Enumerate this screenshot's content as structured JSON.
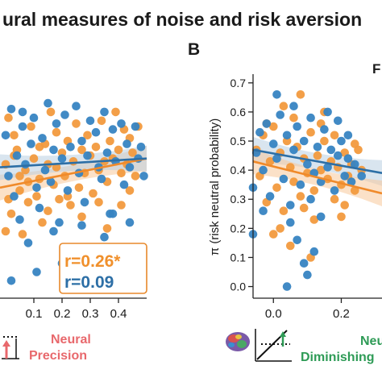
{
  "figure": {
    "title": "ural measures of noise and risk aversion",
    "panel_b_letter": "B",
    "panel_b_legend_fragment": "F",
    "panel_a_annotation": {
      "line1": "r=0.26*",
      "line2": "r=0.09",
      "line1_color": "#f0902c",
      "line2_color": "#2d6fa6"
    },
    "bottom_left_label": {
      "line1": "Neural",
      "line2": "Precision",
      "color": "#e8686c"
    },
    "bottom_right_label": {
      "line1": "Neu",
      "line2": "Diminishing",
      "color": "#2e9b56"
    }
  },
  "colors": {
    "orange": "#f29a3e",
    "blue": "#3784c2",
    "orange_line": "#f08a2a",
    "blue_line": "#2d6fa6",
    "orange_band": "#f7c99a",
    "blue_band": "#b9cfe2"
  },
  "icons": [
    "neural-precision-diagram-icon",
    "brain-icon",
    "diminishing-diagram-icon"
  ],
  "chart_data": [
    {
      "type": "scatter",
      "panel": "A",
      "xlabel": "",
      "ylabel": "",
      "xlim": [
        -0.02,
        0.5
      ],
      "ylim": [
        -0.04,
        0.73
      ],
      "xticks": [
        0.1,
        0.2,
        0.3,
        0.4
      ],
      "xtick_labels": [
        "0.1",
        "0.2",
        "0.3",
        "0.4"
      ],
      "series": [
        {
          "color": "orange",
          "points": [
            [
              0.0,
              0.42
            ],
            [
              0.01,
              0.58
            ],
            [
              0.02,
              0.25
            ],
            [
              0.03,
              0.52
            ],
            [
              0.04,
              0.47
            ],
            [
              0.05,
              0.33
            ],
            [
              0.06,
              0.18
            ],
            [
              0.07,
              0.4
            ],
            [
              0.08,
              0.29
            ],
            [
              0.09,
              0.55
            ],
            [
              0.1,
              0.44
            ],
            [
              0.11,
              0.31
            ],
            [
              0.12,
              0.37
            ],
            [
              0.13,
              0.22
            ],
            [
              0.14,
              0.49
            ],
            [
              0.15,
              0.26
            ],
            [
              0.16,
              0.6
            ],
            [
              0.17,
              0.35
            ],
            [
              0.18,
              0.41
            ],
            [
              0.19,
              0.3
            ],
            [
              0.2,
              0.46
            ],
            [
              0.21,
              0.38
            ],
            [
              0.22,
              0.5
            ],
            [
              0.23,
              0.28
            ],
            [
              0.24,
              0.43
            ],
            [
              0.25,
              0.56
            ],
            [
              0.26,
              0.34
            ],
            [
              0.27,
              0.47
            ],
            [
              0.28,
              0.39
            ],
            [
              0.29,
              0.52
            ],
            [
              0.3,
              0.45
            ],
            [
              0.31,
              0.32
            ],
            [
              0.32,
              0.48
            ],
            [
              0.33,
              0.4
            ],
            [
              0.34,
              0.57
            ],
            [
              0.35,
              0.43
            ],
            [
              0.36,
              0.36
            ],
            [
              0.37,
              0.5
            ],
            [
              0.38,
              0.44
            ],
            [
              0.39,
              0.6
            ],
            [
              0.4,
              0.47
            ],
            [
              0.41,
              0.39
            ],
            [
              0.42,
              0.54
            ],
            [
              0.43,
              0.42
            ],
            [
              0.44,
              0.51
            ],
            [
              0.45,
              0.46
            ],
            [
              0.46,
              0.38
            ],
            [
              0.47,
              0.55
            ],
            [
              0.05,
              0.38
            ],
            [
              0.12,
              0.48
            ],
            [
              0.18,
              0.53
            ],
            [
              0.22,
              0.31
            ],
            [
              0.27,
              0.24
            ],
            [
              0.33,
              0.29
            ],
            [
              0.36,
              0.2
            ],
            [
              0.41,
              0.28
            ],
            [
              0.15,
              0.42
            ],
            [
              0.08,
              0.36
            ],
            [
              0.03,
              0.45
            ],
            [
              0.44,
              0.33
            ],
            [
              0.01,
              0.3
            ],
            [
              0.0,
              0.19
            ]
          ]
        },
        {
          "color": "blue",
          "points": [
            [
              0.0,
              0.52
            ],
            [
              0.01,
              0.38
            ],
            [
              0.02,
              0.61
            ],
            [
              0.03,
              0.31
            ],
            [
              0.04,
              0.45
            ],
            [
              0.05,
              0.23
            ],
            [
              0.06,
              0.55
            ],
            [
              0.07,
              0.42
            ],
            [
              0.08,
              0.15
            ],
            [
              0.09,
              0.49
            ],
            [
              0.1,
              0.58
            ],
            [
              0.11,
              0.34
            ],
            [
              0.12,
              0.27
            ],
            [
              0.13,
              0.51
            ],
            [
              0.14,
              0.4
            ],
            [
              0.15,
              0.63
            ],
            [
              0.16,
              0.36
            ],
            [
              0.17,
              0.47
            ],
            [
              0.18,
              0.56
            ],
            [
              0.19,
              0.22
            ],
            [
              0.2,
              0.44
            ],
            [
              0.21,
              0.59
            ],
            [
              0.22,
              0.33
            ],
            [
              0.23,
              0.48
            ],
            [
              0.24,
              0.1
            ],
            [
              0.25,
              0.62
            ],
            [
              0.26,
              0.39
            ],
            [
              0.27,
              0.5
            ],
            [
              0.28,
              0.29
            ],
            [
              0.29,
              0.45
            ],
            [
              0.3,
              0.57
            ],
            [
              0.31,
              0.06
            ],
            [
              0.32,
              0.53
            ],
            [
              0.33,
              0.41
            ],
            [
              0.34,
              0.37
            ],
            [
              0.35,
              0.6
            ],
            [
              0.36,
              0.46
            ],
            [
              0.37,
              0.25
            ],
            [
              0.38,
              0.54
            ],
            [
              0.39,
              0.43
            ],
            [
              0.4,
              0.12
            ],
            [
              0.41,
              0.56
            ],
            [
              0.42,
              0.35
            ],
            [
              0.43,
              0.49
            ],
            [
              0.44,
              0.41
            ],
            [
              0.45,
              0.04
            ],
            [
              0.46,
              0.55
            ],
            [
              0.47,
              0.44
            ],
            [
              0.48,
              0.48
            ],
            [
              0.49,
              0.38
            ],
            [
              0.06,
              0.6
            ],
            [
              0.17,
              0.19
            ],
            [
              0.27,
              0.21
            ],
            [
              0.35,
              0.17
            ],
            [
              0.11,
              0.05
            ],
            [
              0.2,
              0.08
            ],
            [
              0.31,
              0.0
            ],
            [
              0.38,
              0.25
            ],
            [
              0.44,
              0.22
            ],
            [
              0.02,
              0.02
            ]
          ]
        }
      ],
      "fit_lines": [
        {
          "color": "orange",
          "x": [
            -0.02,
            0.5
          ],
          "y": [
            0.34,
            0.44
          ]
        },
        {
          "color": "blue",
          "x": [
            -0.02,
            0.5
          ],
          "y": [
            0.41,
            0.44
          ]
        }
      ]
    },
    {
      "type": "scatter",
      "panel": "B",
      "xlabel": "",
      "ylabel": "π (risk neutral probability)",
      "xlim": [
        -0.06,
        0.32
      ],
      "ylim": [
        -0.04,
        0.73
      ],
      "xticks": [
        0.0,
        0.2
      ],
      "xtick_labels": [
        "0.0",
        "0.2"
      ],
      "yticks": [
        0.0,
        0.1,
        0.2,
        0.3,
        0.4,
        0.5,
        0.6,
        0.7
      ],
      "ytick_labels": [
        "0.0",
        "0.1",
        "0.2",
        "0.3",
        "0.4",
        "0.5",
        "0.6",
        "0.7"
      ],
      "series": [
        {
          "color": "orange",
          "points": [
            [
              -0.05,
              0.47
            ],
            [
              -0.04,
              0.38
            ],
            [
              -0.03,
              0.52
            ],
            [
              -0.02,
              0.29
            ],
            [
              -0.01,
              0.43
            ],
            [
              0.0,
              0.55
            ],
            [
              0.01,
              0.34
            ],
            [
              0.02,
              0.46
            ],
            [
              0.03,
              0.26
            ],
            [
              0.04,
              0.5
            ],
            [
              0.05,
              0.41
            ],
            [
              0.06,
              0.36
            ],
            [
              0.07,
              0.48
            ],
            [
              0.08,
              0.31
            ],
            [
              0.09,
              0.44
            ],
            [
              0.1,
              0.39
            ],
            [
              0.11,
              0.53
            ],
            [
              0.12,
              0.33
            ],
            [
              0.13,
              0.45
            ],
            [
              0.14,
              0.4
            ],
            [
              0.15,
              0.5
            ],
            [
              0.16,
              0.37
            ],
            [
              0.17,
              0.43
            ],
            [
              0.18,
              0.3
            ],
            [
              0.19,
              0.41
            ],
            [
              0.2,
              0.35
            ],
            [
              0.21,
              0.46
            ],
            [
              0.22,
              0.38
            ],
            [
              0.23,
              0.42
            ],
            [
              0.24,
              0.33
            ],
            [
              0.0,
              0.18
            ],
            [
              0.03,
              0.62
            ],
            [
              0.06,
              0.58
            ],
            [
              0.09,
              0.27
            ],
            [
              0.12,
              0.23
            ],
            [
              0.15,
              0.6
            ],
            [
              0.18,
              0.52
            ],
            [
              0.21,
              0.28
            ],
            [
              0.24,
              0.49
            ],
            [
              0.02,
              0.2
            ],
            [
              0.08,
              0.66
            ],
            [
              0.14,
              0.56
            ],
            [
              0.2,
              0.24
            ],
            [
              0.26,
              0.4
            ],
            [
              0.05,
              0.14
            ],
            [
              0.11,
              0.1
            ],
            [
              -0.02,
              0.56
            ],
            [
              0.25,
              0.47
            ]
          ]
        },
        {
          "color": "blue",
          "points": [
            [
              -0.06,
              0.34
            ],
            [
              -0.05,
              0.46
            ],
            [
              -0.04,
              0.53
            ],
            [
              -0.03,
              0.4
            ],
            [
              -0.02,
              0.56
            ],
            [
              -0.01,
              0.31
            ],
            [
              0.0,
              0.49
            ],
            [
              0.01,
              0.44
            ],
            [
              0.02,
              0.59
            ],
            [
              0.03,
              0.37
            ],
            [
              0.04,
              0.52
            ],
            [
              0.05,
              0.28
            ],
            [
              0.06,
              0.47
            ],
            [
              0.07,
              0.55
            ],
            [
              0.08,
              0.35
            ],
            [
              0.09,
              0.5
            ],
            [
              0.1,
              0.42
            ],
            [
              0.11,
              0.58
            ],
            [
              0.12,
              0.39
            ],
            [
              0.13,
              0.48
            ],
            [
              0.14,
              0.36
            ],
            [
              0.15,
              0.54
            ],
            [
              0.16,
              0.41
            ],
            [
              0.17,
              0.47
            ],
            [
              0.18,
              0.33
            ],
            [
              0.19,
              0.45
            ],
            [
              0.2,
              0.5
            ],
            [
              0.21,
              0.38
            ],
            [
              0.22,
              0.44
            ],
            [
              0.23,
              0.36
            ],
            [
              0.24,
              0.42
            ],
            [
              0.05,
              0.22
            ],
            [
              0.07,
              0.16
            ],
            [
              0.1,
              0.04
            ],
            [
              0.12,
              0.12
            ],
            [
              0.09,
              0.08
            ],
            [
              0.04,
              0.0
            ],
            [
              0.14,
              0.24
            ],
            [
              0.01,
              0.66
            ],
            [
              0.06,
              0.62
            ],
            [
              0.16,
              0.6
            ],
            [
              0.19,
              0.57
            ],
            [
              0.22,
              0.52
            ],
            [
              -0.03,
              0.26
            ],
            [
              -0.06,
              0.18
            ],
            [
              0.26,
              0.38
            ],
            [
              0.11,
              0.3
            ]
          ]
        }
      ],
      "fit_lines": [
        {
          "color": "blue",
          "x": [
            -0.06,
            0.32
          ],
          "y": [
            0.47,
            0.39
          ]
        },
        {
          "color": "orange",
          "x": [
            -0.06,
            0.32
          ],
          "y": [
            0.43,
            0.32
          ]
        }
      ]
    }
  ]
}
